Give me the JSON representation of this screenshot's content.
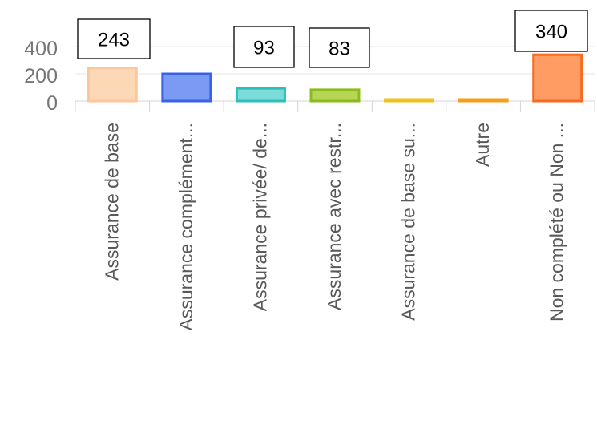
{
  "chart_data": {
    "type": "bar",
    "categories": [
      "Assurance de base",
      "Assurance complément...",
      "Assurance privée/ de...",
      "Assurance avec restr...",
      "Assurance de base su...",
      "Autre",
      "Non complété ou Non ..."
    ],
    "values": [
      243,
      200,
      93,
      83,
      5,
      8,
      340
    ],
    "colors": {
      "fill": [
        "#fdd8b7",
        "#7a9af4",
        "#7bdcd8",
        "#b6d455",
        "#f7d27c",
        "#ffb067",
        "#fe9c63"
      ],
      "stroke": [
        "#fbc79b",
        "#3a62e8",
        "#2dbfbe",
        "#8bbd1a",
        "#f0c21a",
        "#f89e1a",
        "#f86a22"
      ]
    },
    "yticks": [
      0,
      200,
      400
    ],
    "ylim": [
      0,
      400
    ],
    "grid": true,
    "legend": "none",
    "callout_labels": [
      "243",
      "93",
      "83",
      "340"
    ]
  }
}
